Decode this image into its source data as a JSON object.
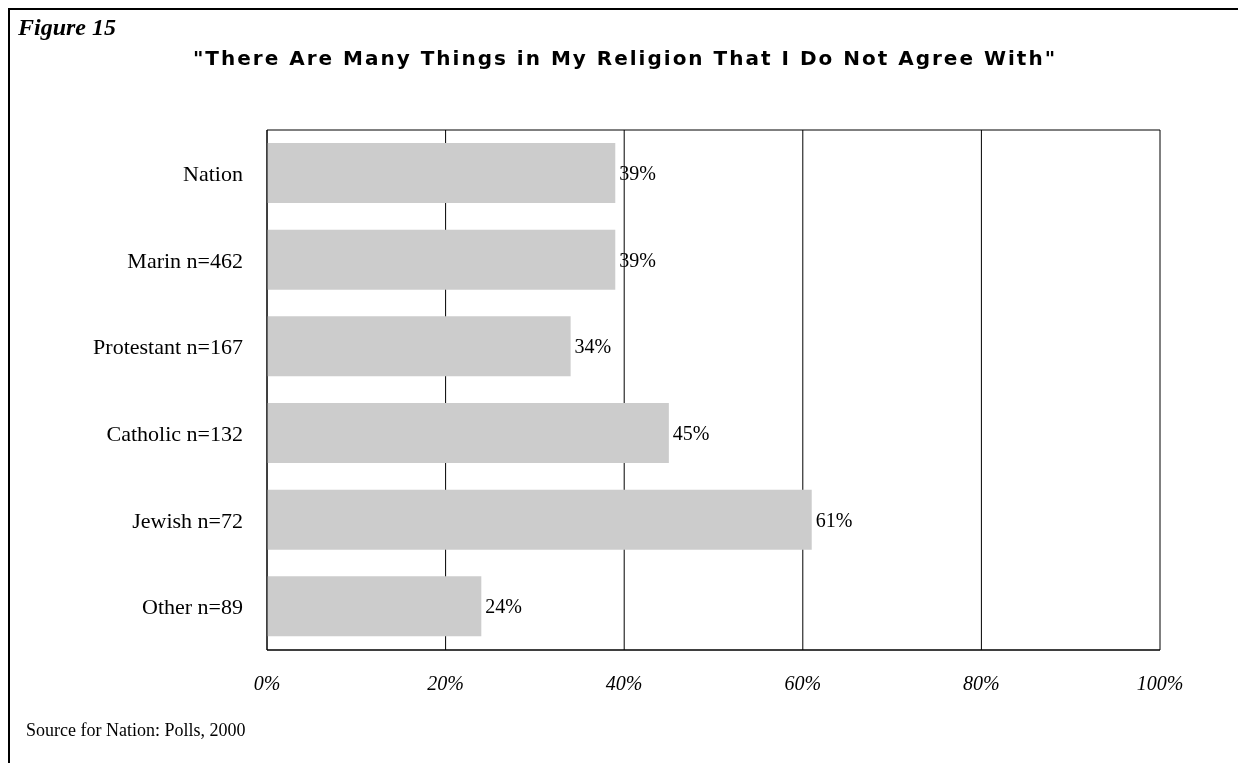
{
  "chart_data": {
    "type": "bar",
    "orientation": "horizontal",
    "title": "\"There Are Many Things in My Religion That I Do Not Agree With\"",
    "categories": [
      "Nation",
      "Marin n=462",
      "Protestant n=167",
      "Catholic n=132",
      "Jewish n=72",
      "Other n=89"
    ],
    "values": [
      39,
      39,
      34,
      45,
      61,
      24
    ],
    "value_labels": [
      "39%",
      "39%",
      "34%",
      "45%",
      "61%",
      "24%"
    ],
    "color": "#cccccc",
    "xlim": [
      0,
      100
    ],
    "xticks": [
      {
        "value": 0,
        "label": "0%"
      },
      {
        "value": 20,
        "label": "20%"
      },
      {
        "value": 40,
        "label": "40%"
      },
      {
        "value": 60,
        "label": "60%"
      },
      {
        "value": 80,
        "label": "80%"
      },
      {
        "value": 100,
        "label": "100%"
      }
    ],
    "grid": "x",
    "annotations": [
      "Figure 15",
      "Source for Nation: Polls, 2000"
    ]
  }
}
